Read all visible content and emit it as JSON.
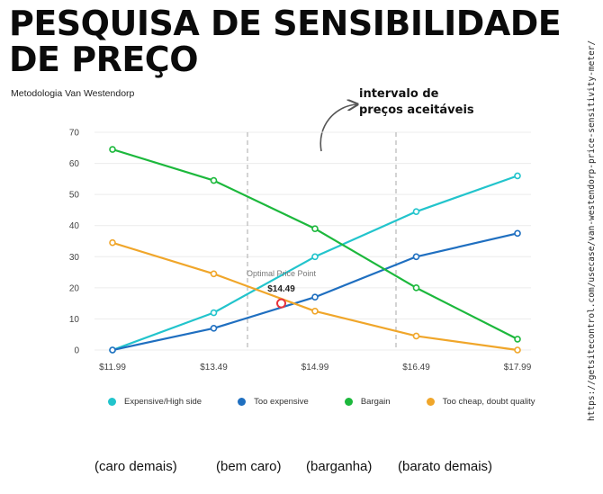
{
  "header": {
    "title": "PESQUISA DE SENSIBILIDADE DE PREÇO",
    "subtitle": "Metodologia Van Westendorp"
  },
  "annotation": {
    "line1": "intervalo de",
    "line2": "preços aceitáveis"
  },
  "source_url": "https://getsitecontrol.com/usecase/van-westendorp-price-sensitivity-meter/",
  "optimal": {
    "label": "Optimal Price Point",
    "value_label": "$14.49",
    "x": 14.49,
    "y": 15
  },
  "bottom_labels": [
    "(caro demais)",
    "(bem caro)",
    "(barganha)",
    "(barato demais)"
  ],
  "chart_data": {
    "type": "line",
    "x": [
      11.99,
      13.49,
      14.99,
      16.49,
      17.99
    ],
    "x_tick_labels": [
      "$11.99",
      "$13.49",
      "$14.99",
      "$16.49",
      "$17.99"
    ],
    "ylim": [
      0,
      70
    ],
    "y_ticks": [
      0,
      10,
      20,
      30,
      40,
      50,
      60,
      70
    ],
    "grid": true,
    "acceptable_range_lines": [
      13.99,
      16.19
    ],
    "legend_position": "bottom",
    "series": [
      {
        "name": "Expensive/High side",
        "color": "#22c4cc",
        "values": [
          0,
          12,
          30,
          44.5,
          56
        ]
      },
      {
        "name": "Too expensive",
        "color": "#1f6fc0",
        "values": [
          0,
          7,
          17,
          30,
          37.5
        ]
      },
      {
        "name": "Bargain",
        "color": "#1cb83c",
        "values": [
          64.5,
          54.5,
          39,
          20,
          3.5
        ]
      },
      {
        "name": "Too cheap, doubt quality",
        "color": "#f0a62a",
        "values": [
          34.5,
          24.5,
          12.5,
          4.5,
          0
        ]
      }
    ]
  }
}
